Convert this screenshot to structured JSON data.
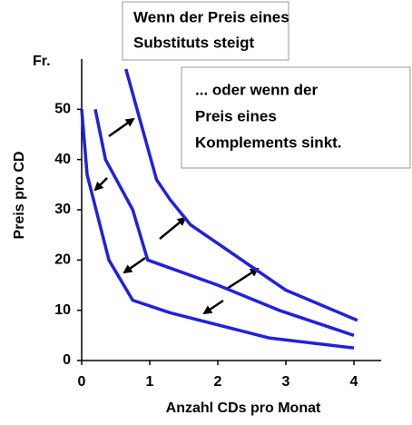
{
  "chart_data": {
    "type": "line",
    "xlabel": "Anzahl CDs pro Monat",
    "ylabel": "Preis pro CD",
    "yunit": "Fr.",
    "xlim": [
      0,
      4.4
    ],
    "ylim": [
      0,
      60
    ],
    "xticks": [
      0,
      1,
      2,
      3,
      4
    ],
    "yticks": [
      0,
      10,
      20,
      30,
      40,
      50
    ],
    "series": [
      {
        "color": "#2020e0",
        "x": [
          0.0,
          0.08,
          0.4,
          0.75,
          1.3,
          2.75,
          4.0
        ],
        "values": [
          50,
          37,
          20,
          12,
          9.5,
          4.5,
          2.5
        ]
      },
      {
        "color": "#2020e0",
        "x": [
          0.2,
          0.35,
          0.75,
          0.97,
          2.0,
          2.9,
          4.0
        ],
        "values": [
          50,
          40,
          30,
          20,
          15,
          10,
          5
        ]
      },
      {
        "color": "#2020e0",
        "x": [
          0.65,
          1.1,
          1.3,
          1.6,
          3.0,
          4.05
        ],
        "values": [
          58,
          36,
          32,
          27,
          14,
          8
        ]
      }
    ],
    "annotations": [
      {
        "lines": [
          "Wenn der Preis eines",
          "Substituts steigt"
        ]
      },
      {
        "lines": [
          "... oder wenn der",
          "Preis eines",
          "Komplements sinkt."
        ]
      }
    ]
  }
}
